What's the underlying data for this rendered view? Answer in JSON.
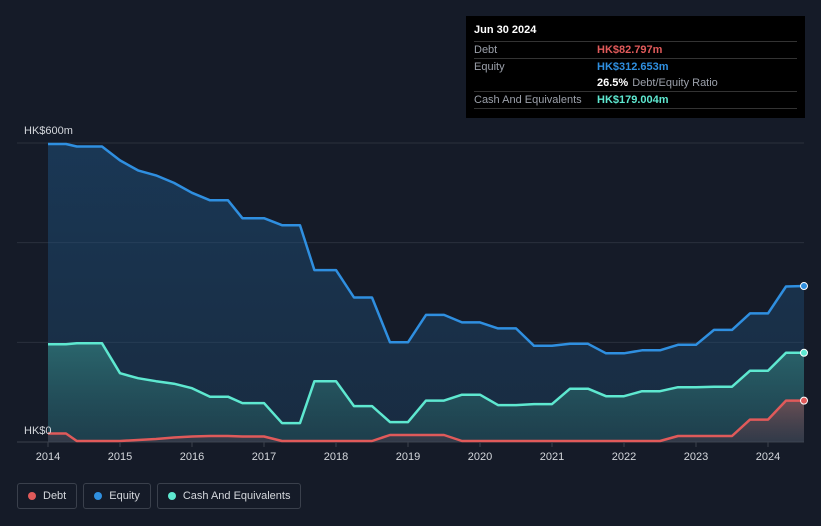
{
  "tooltip": {
    "date": "Jun 30 2024",
    "debt_label": "Debt",
    "debt_value": "HK$82.797m",
    "equity_label": "Equity",
    "equity_value": "HK$312.653m",
    "ratio_value": "26.5%",
    "ratio_label": "Debt/Equity Ratio",
    "cash_label": "Cash And Equivalents",
    "cash_value": "HK$179.004m"
  },
  "legend": [
    {
      "label": "Debt",
      "color": "#e05a5a"
    },
    {
      "label": "Equity",
      "color": "#2f8fe0"
    },
    {
      "label": "Cash And Equivalents",
      "color": "#5ee8d0"
    }
  ],
  "chart_data": {
    "type": "area",
    "y_tick_labels": [
      "HK$600m",
      "HK$0"
    ],
    "ylim": [
      0,
      600
    ],
    "xlim": [
      2014,
      2024.5
    ],
    "x_tick_labels": [
      "2014",
      "2015",
      "2016",
      "2017",
      "2018",
      "2019",
      "2020",
      "2021",
      "2022",
      "2023",
      "2024"
    ],
    "x_ticks": [
      2014,
      2015,
      2016,
      2017,
      2018,
      2019,
      2020,
      2021,
      2022,
      2023,
      2024
    ],
    "colors": {
      "debt": "#e05a5a",
      "equity": "#2f8fe0",
      "cash": "#5ee8d0"
    },
    "series": [
      {
        "name": "Equity",
        "x": [
          2014.0,
          2014.25,
          2014.4,
          2014.75,
          2015.0,
          2015.25,
          2015.5,
          2015.75,
          2016.0,
          2016.25,
          2016.5,
          2016.7,
          2017.0,
          2017.25,
          2017.5,
          2017.7,
          2018.0,
          2018.25,
          2018.5,
          2018.75,
          2019.0,
          2019.25,
          2019.5,
          2019.75,
          2020.0,
          2020.25,
          2020.5,
          2020.75,
          2021.0,
          2021.25,
          2021.5,
          2021.75,
          2022.0,
          2022.25,
          2022.5,
          2022.75,
          2023.0,
          2023.25,
          2023.5,
          2023.75,
          2024.0,
          2024.25,
          2024.5
        ],
        "values": [
          598,
          598,
          593,
          593,
          565,
          545,
          535,
          520,
          500,
          485,
          485,
          449,
          449,
          435,
          435,
          345,
          345,
          290,
          290,
          200,
          200,
          255,
          255,
          240,
          240,
          228,
          228,
          193,
          193,
          197,
          197,
          178,
          178,
          184,
          184,
          195,
          195,
          225,
          225,
          258,
          258,
          312,
          313
        ]
      },
      {
        "name": "Cash And Equivalents",
        "x": [
          2014.0,
          2014.25,
          2014.4,
          2014.75,
          2015.0,
          2015.25,
          2015.5,
          2015.75,
          2016.0,
          2016.25,
          2016.5,
          2016.7,
          2017.0,
          2017.25,
          2017.5,
          2017.7,
          2018.0,
          2018.25,
          2018.5,
          2018.75,
          2019.0,
          2019.25,
          2019.5,
          2019.75,
          2020.0,
          2020.25,
          2020.5,
          2020.75,
          2021.0,
          2021.25,
          2021.5,
          2021.75,
          2022.0,
          2022.25,
          2022.5,
          2022.75,
          2023.0,
          2023.25,
          2023.5,
          2023.75,
          2024.0,
          2024.25,
          2024.5
        ],
        "values": [
          196,
          196,
          198,
          198,
          138,
          128,
          122,
          117,
          108,
          91,
          91,
          78,
          78,
          38,
          38,
          122,
          122,
          72,
          72,
          40,
          40,
          83,
          83,
          95,
          95,
          74,
          74,
          76,
          76,
          107,
          107,
          92,
          92,
          102,
          102,
          110,
          110,
          111,
          111,
          143,
          143,
          179,
          179
        ]
      },
      {
        "name": "Debt",
        "x": [
          2014.0,
          2014.25,
          2014.4,
          2014.75,
          2015.0,
          2015.25,
          2015.5,
          2015.75,
          2016.0,
          2016.25,
          2016.5,
          2016.7,
          2017.0,
          2017.25,
          2017.5,
          2017.7,
          2018.0,
          2018.25,
          2018.5,
          2018.75,
          2019.0,
          2019.25,
          2019.5,
          2019.75,
          2020.0,
          2020.25,
          2020.5,
          2020.75,
          2021.0,
          2021.25,
          2021.5,
          2021.75,
          2022.0,
          2022.25,
          2022.5,
          2022.75,
          2023.0,
          2023.25,
          2023.5,
          2023.75,
          2024.0,
          2024.25,
          2024.5
        ],
        "values": [
          17,
          17,
          2,
          2,
          2,
          4,
          6,
          9,
          11,
          12,
          12,
          11,
          11,
          2,
          2,
          2,
          2,
          2,
          2,
          14,
          14,
          14,
          14,
          2,
          2,
          2,
          2,
          2,
          2,
          2,
          2,
          2,
          2,
          2,
          2,
          12,
          12,
          12,
          12,
          45,
          45,
          83,
          83
        ]
      }
    ]
  }
}
